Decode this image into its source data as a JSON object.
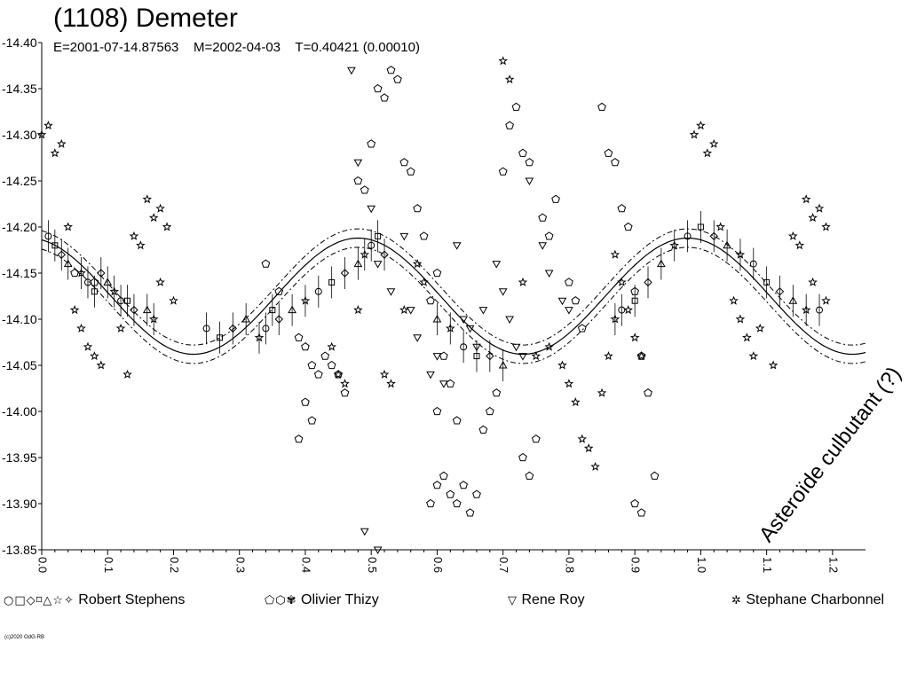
{
  "title": "(1108) Demeter",
  "subtitle": "E=2001-07-14.87563    M=2002-04-03    T=0.40421 (0.00010)",
  "annotation": "Asteroïde culbutant (?)",
  "credit": "(c)2020 OdG-RB",
  "chart_data": {
    "type": "scatter",
    "xlim": [
      0.0,
      1.25
    ],
    "ylim": [
      -14.4,
      -13.85
    ],
    "y_inverted": true,
    "x_ticks": [
      0.0,
      0.1,
      0.2,
      0.3,
      0.4,
      0.5,
      0.6,
      0.7,
      0.8,
      0.9,
      1.0,
      1.1,
      1.2
    ],
    "x_tick_labels": [
      "0.0",
      "0.1",
      "0.2",
      "0.3",
      "0.4",
      "0.5",
      "0.6",
      "0.7",
      "0.8",
      "0.9",
      "1.0",
      "1.1",
      "1.2"
    ],
    "y_ticks": [
      -14.4,
      -14.35,
      -14.3,
      -14.25,
      -14.2,
      -14.15,
      -14.1,
      -14.05,
      -14.0,
      -13.95,
      -13.9,
      -13.85
    ],
    "y_tick_labels": [
      "-14.40",
      "-14.35",
      "-14.30",
      "-14.25",
      "-14.20",
      "-14.15",
      "-14.10",
      "-14.05",
      "-14.00",
      "-13.95",
      "-13.90",
      "-13.85"
    ],
    "grid": false,
    "fit_curve": {
      "period_fraction": 0.5,
      "mean": -14.125,
      "amplitude": 0.063,
      "band": 0.01
    },
    "legend_position": "bottom",
    "series": [
      {
        "name": "Robert Stephens",
        "legend_symbols": "○□◇⌑△☆✧",
        "symbol": "mixed",
        "points": [
          [
            0.01,
            -14.19
          ],
          [
            0.02,
            -14.18
          ],
          [
            0.03,
            -14.17
          ],
          [
            0.04,
            -14.16
          ],
          [
            0.06,
            -14.15
          ],
          [
            0.07,
            -14.14
          ],
          [
            0.08,
            -14.13
          ],
          [
            0.09,
            -14.15
          ],
          [
            0.1,
            -14.14
          ],
          [
            0.11,
            -14.13
          ],
          [
            0.12,
            -14.12
          ],
          [
            0.13,
            -14.12
          ],
          [
            0.14,
            -14.11
          ],
          [
            0.16,
            -14.11
          ],
          [
            0.17,
            -14.1
          ],
          [
            0.25,
            -14.09
          ],
          [
            0.27,
            -14.08
          ],
          [
            0.29,
            -14.09
          ],
          [
            0.31,
            -14.1
          ],
          [
            0.33,
            -14.08
          ],
          [
            0.34,
            -14.09
          ],
          [
            0.35,
            -14.11
          ],
          [
            0.36,
            -14.1
          ],
          [
            0.38,
            -14.11
          ],
          [
            0.4,
            -14.12
          ],
          [
            0.42,
            -14.13
          ],
          [
            0.44,
            -14.14
          ],
          [
            0.46,
            -14.15
          ],
          [
            0.48,
            -14.16
          ],
          [
            0.49,
            -14.17
          ],
          [
            0.5,
            -14.18
          ],
          [
            0.51,
            -14.19
          ],
          [
            0.52,
            -14.17
          ],
          [
            0.6,
            -14.1
          ],
          [
            0.62,
            -14.09
          ],
          [
            0.64,
            -14.07
          ],
          [
            0.66,
            -14.06
          ],
          [
            0.68,
            -14.06
          ],
          [
            0.7,
            -14.05
          ],
          [
            0.87,
            -14.1
          ],
          [
            0.88,
            -14.11
          ],
          [
            0.9,
            -14.12
          ],
          [
            0.92,
            -14.14
          ],
          [
            0.94,
            -14.16
          ],
          [
            0.96,
            -14.18
          ],
          [
            0.98,
            -14.19
          ],
          [
            1.0,
            -14.2
          ],
          [
            1.02,
            -14.19
          ],
          [
            1.04,
            -14.18
          ],
          [
            1.06,
            -14.17
          ],
          [
            1.08,
            -14.16
          ],
          [
            1.1,
            -14.14
          ],
          [
            1.12,
            -14.13
          ],
          [
            1.14,
            -14.12
          ],
          [
            1.16,
            -14.11
          ],
          [
            1.18,
            -14.11
          ]
        ]
      },
      {
        "name": "Olivier Thizy",
        "legend_symbols": "⬠⬡✾",
        "symbol": "pentagon",
        "points": [
          [
            0.05,
            -14.15
          ],
          [
            0.08,
            -14.14
          ],
          [
            0.34,
            -14.16
          ],
          [
            0.36,
            -14.13
          ],
          [
            0.39,
            -14.08
          ],
          [
            0.4,
            -14.07
          ],
          [
            0.41,
            -14.05
          ],
          [
            0.42,
            -14.04
          ],
          [
            0.43,
            -14.06
          ],
          [
            0.44,
            -14.05
          ],
          [
            0.45,
            -14.04
          ],
          [
            0.46,
            -14.02
          ],
          [
            0.4,
            -14.01
          ],
          [
            0.41,
            -13.99
          ],
          [
            0.39,
            -13.97
          ],
          [
            0.48,
            -14.25
          ],
          [
            0.49,
            -14.24
          ],
          [
            0.5,
            -14.29
          ],
          [
            0.51,
            -14.35
          ],
          [
            0.52,
            -14.34
          ],
          [
            0.53,
            -14.37
          ],
          [
            0.54,
            -14.36
          ],
          [
            0.55,
            -14.27
          ],
          [
            0.56,
            -14.26
          ],
          [
            0.57,
            -14.22
          ],
          [
            0.58,
            -14.19
          ],
          [
            0.6,
            -14.15
          ],
          [
            0.59,
            -14.12
          ],
          [
            0.61,
            -14.06
          ],
          [
            0.62,
            -14.03
          ],
          [
            0.6,
            -14.0
          ],
          [
            0.63,
            -13.99
          ],
          [
            0.6,
            -13.92
          ],
          [
            0.61,
            -13.93
          ],
          [
            0.62,
            -13.91
          ],
          [
            0.63,
            -13.9
          ],
          [
            0.64,
            -13.92
          ],
          [
            0.65,
            -13.89
          ],
          [
            0.66,
            -13.91
          ],
          [
            0.59,
            -13.9
          ],
          [
            0.67,
            -13.98
          ],
          [
            0.68,
            -14.0
          ],
          [
            0.69,
            -14.02
          ],
          [
            0.7,
            -14.26
          ],
          [
            0.71,
            -14.31
          ],
          [
            0.72,
            -14.33
          ],
          [
            0.73,
            -14.28
          ],
          [
            0.74,
            -14.27
          ],
          [
            0.76,
            -14.21
          ],
          [
            0.77,
            -14.19
          ],
          [
            0.78,
            -14.23
          ],
          [
            0.8,
            -14.14
          ],
          [
            0.81,
            -14.12
          ],
          [
            0.82,
            -14.09
          ],
          [
            0.75,
            -13.97
          ],
          [
            0.74,
            -13.93
          ],
          [
            0.73,
            -13.95
          ],
          [
            0.85,
            -14.33
          ],
          [
            0.86,
            -14.28
          ],
          [
            0.87,
            -14.27
          ],
          [
            0.88,
            -14.22
          ],
          [
            0.89,
            -14.2
          ],
          [
            0.9,
            -14.13
          ],
          [
            0.91,
            -14.06
          ],
          [
            0.92,
            -14.02
          ],
          [
            0.9,
            -13.9
          ],
          [
            0.91,
            -13.89
          ],
          [
            0.93,
            -13.93
          ]
        ]
      },
      {
        "name": "Rene Roy",
        "legend_symbols": "▽",
        "symbol": "triangle-down",
        "points": [
          [
            0.47,
            -14.37
          ],
          [
            0.48,
            -14.27
          ],
          [
            0.5,
            -14.22
          ],
          [
            0.51,
            -14.16
          ],
          [
            0.53,
            -14.13
          ],
          [
            0.55,
            -14.19
          ],
          [
            0.56,
            -14.11
          ],
          [
            0.57,
            -14.08
          ],
          [
            0.59,
            -14.04
          ],
          [
            0.6,
            -14.06
          ],
          [
            0.61,
            -14.03
          ],
          [
            0.49,
            -13.87
          ],
          [
            0.51,
            -13.85
          ],
          [
            0.63,
            -14.18
          ],
          [
            0.64,
            -14.1
          ],
          [
            0.65,
            -14.09
          ],
          [
            0.66,
            -14.07
          ],
          [
            0.67,
            -14.11
          ],
          [
            0.69,
            -14.16
          ],
          [
            0.7,
            -14.13
          ],
          [
            0.71,
            -14.1
          ],
          [
            0.72,
            -14.07
          ],
          [
            0.73,
            -14.06
          ],
          [
            0.74,
            -14.25
          ],
          [
            0.76,
            -14.18
          ],
          [
            0.77,
            -14.15
          ],
          [
            0.79,
            -14.12
          ],
          [
            0.8,
            -14.11
          ]
        ]
      },
      {
        "name": "Stephane Charbonnel",
        "legend_symbols": "✲",
        "symbol": "star",
        "points": [
          [
            0.0,
            -14.3
          ],
          [
            0.01,
            -14.31
          ],
          [
            0.02,
            -14.28
          ],
          [
            0.03,
            -14.29
          ],
          [
            0.04,
            -14.2
          ],
          [
            0.05,
            -14.11
          ],
          [
            0.06,
            -14.09
          ],
          [
            0.07,
            -14.07
          ],
          [
            0.08,
            -14.06
          ],
          [
            0.09,
            -14.05
          ],
          [
            0.12,
            -14.09
          ],
          [
            0.13,
            -14.04
          ],
          [
            0.14,
            -14.19
          ],
          [
            0.15,
            -14.18
          ],
          [
            0.16,
            -14.23
          ],
          [
            0.17,
            -14.21
          ],
          [
            0.18,
            -14.22
          ],
          [
            0.19,
            -14.2
          ],
          [
            0.18,
            -14.14
          ],
          [
            0.2,
            -14.12
          ],
          [
            0.44,
            -14.07
          ],
          [
            0.45,
            -14.04
          ],
          [
            0.46,
            -14.03
          ],
          [
            0.48,
            -14.11
          ],
          [
            0.52,
            -14.04
          ],
          [
            0.53,
            -14.03
          ],
          [
            0.55,
            -14.11
          ],
          [
            0.57,
            -14.16
          ],
          [
            0.58,
            -14.14
          ],
          [
            0.7,
            -14.38
          ],
          [
            0.71,
            -14.36
          ],
          [
            0.73,
            -14.14
          ],
          [
            0.75,
            -14.06
          ],
          [
            0.77,
            -14.07
          ],
          [
            0.79,
            -14.05
          ],
          [
            0.8,
            -14.03
          ],
          [
            0.81,
            -14.01
          ],
          [
            0.82,
            -13.97
          ],
          [
            0.83,
            -13.96
          ],
          [
            0.84,
            -13.94
          ],
          [
            0.85,
            -14.02
          ],
          [
            0.86,
            -14.06
          ],
          [
            0.87,
            -14.17
          ],
          [
            0.88,
            -14.14
          ],
          [
            0.89,
            -14.11
          ],
          [
            0.9,
            -14.08
          ],
          [
            0.91,
            -14.06
          ],
          [
            0.99,
            -14.3
          ],
          [
            1.0,
            -14.31
          ],
          [
            1.01,
            -14.28
          ],
          [
            1.02,
            -14.29
          ],
          [
            1.03,
            -14.2
          ],
          [
            1.05,
            -14.12
          ],
          [
            1.06,
            -14.1
          ],
          [
            1.07,
            -14.08
          ],
          [
            1.08,
            -14.06
          ],
          [
            1.09,
            -14.09
          ],
          [
            1.11,
            -14.05
          ],
          [
            1.14,
            -14.19
          ],
          [
            1.15,
            -14.18
          ],
          [
            1.16,
            -14.23
          ],
          [
            1.17,
            -14.21
          ],
          [
            1.18,
            -14.22
          ],
          [
            1.19,
            -14.2
          ],
          [
            1.17,
            -14.14
          ],
          [
            1.19,
            -14.12
          ]
        ]
      }
    ]
  }
}
